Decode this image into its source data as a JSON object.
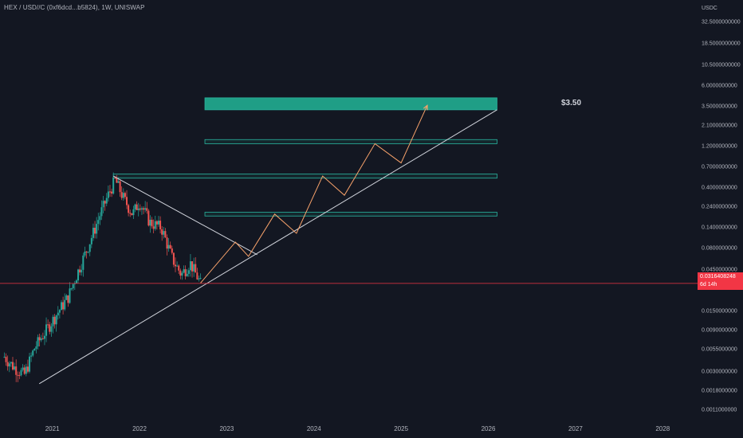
{
  "header": {
    "symbol_line": "HEX / USD//C (0xf6dcd...b5824), 1W, UNISWAP"
  },
  "price_axis": {
    "currency": "USDC",
    "scale": "log",
    "ticks": [
      "32.5000000000",
      "18.5000000000",
      "10.5000000000",
      "6.0000000000",
      "3.5000000000",
      "2.1000000000",
      "1.2000000000",
      "0.7000000000",
      "0.4000000000",
      "0.2400000000",
      "0.1400000000",
      "0.0800000000",
      "0.0450000000",
      "0.0150000000",
      "0.0090000000",
      "0.0055000000",
      "0.0030000000",
      "0.0018000000",
      "0.0011000000"
    ]
  },
  "time_axis": {
    "ticks": [
      "2021",
      "2022",
      "2023",
      "2024",
      "2025",
      "2026",
      "2027",
      "2028"
    ]
  },
  "current_price": {
    "value": "0.0316408248",
    "countdown": "6d 14h",
    "numeric": 0.0316408248
  },
  "annotations": {
    "target_label": "$3.50"
  },
  "colors": {
    "background": "#131722",
    "up_candle": "#26a69a",
    "down_candle": "#ef5350",
    "trendline": "#d1d4dc",
    "projection": "#f7a26b",
    "zone_fill": "#1f9e86",
    "zone_border": "#2ab5a0",
    "price_line": "#f23645"
  },
  "chart_data": {
    "type": "candlestick",
    "symbol": "HEX / USD//C",
    "interval": "1W",
    "exchange": "UNISWAP",
    "y_scale": "log",
    "x_range": [
      2020.4,
      2028.4
    ],
    "y_range": [
      0.00098,
      48
    ],
    "price_points": [
      {
        "x": 2020.45,
        "y": 0.0045
      },
      {
        "x": 2020.55,
        "y": 0.0035
      },
      {
        "x": 2020.68,
        "y": 0.0028
      },
      {
        "x": 2020.8,
        "y": 0.0058
      },
      {
        "x": 2020.92,
        "y": 0.0088
      },
      {
        "x": 2021.05,
        "y": 0.014
      },
      {
        "x": 2021.18,
        "y": 0.022
      },
      {
        "x": 2021.28,
        "y": 0.04
      },
      {
        "x": 2021.42,
        "y": 0.09
      },
      {
        "x": 2021.55,
        "y": 0.2
      },
      {
        "x": 2021.65,
        "y": 0.35
      },
      {
        "x": 2021.72,
        "y": 0.5
      },
      {
        "x": 2021.82,
        "y": 0.3
      },
      {
        "x": 2021.92,
        "y": 0.2
      },
      {
        "x": 2022.0,
        "y": 0.28
      },
      {
        "x": 2022.12,
        "y": 0.16
      },
      {
        "x": 2022.25,
        "y": 0.14
      },
      {
        "x": 2022.38,
        "y": 0.06
      },
      {
        "x": 2022.48,
        "y": 0.04
      },
      {
        "x": 2022.58,
        "y": 0.055
      },
      {
        "x": 2022.7,
        "y": 0.0316
      }
    ],
    "trendlines": [
      {
        "name": "rising support",
        "from": {
          "x": 2020.85,
          "y": 0.0022
        },
        "to": {
          "x": 2026.1,
          "y": 3.2
        }
      },
      {
        "name": "falling resistance",
        "from": {
          "x": 2021.7,
          "y": 0.55
        },
        "to": {
          "x": 2023.35,
          "y": 0.068
        }
      }
    ],
    "zones": [
      {
        "name": "target zone",
        "from_x": 2022.75,
        "to_x": 2026.1,
        "low": 3.2,
        "high": 4.4,
        "filled": true
      },
      {
        "name": "zone 2",
        "from_x": 2022.75,
        "to_x": 2026.1,
        "low": 1.3,
        "high": 1.45,
        "filled": false
      },
      {
        "name": "zone 3",
        "from_x": 2021.7,
        "to_x": 2026.1,
        "low": 0.52,
        "high": 0.58,
        "filled": false
      },
      {
        "name": "zone 4",
        "from_x": 2022.75,
        "to_x": 2026.1,
        "low": 0.19,
        "high": 0.21,
        "filled": false
      }
    ],
    "projection_path": [
      {
        "x": 2022.7,
        "y": 0.032
      },
      {
        "x": 2023.1,
        "y": 0.095
      },
      {
        "x": 2023.25,
        "y": 0.065
      },
      {
        "x": 2023.55,
        "y": 0.2
      },
      {
        "x": 2023.8,
        "y": 0.12
      },
      {
        "x": 2024.1,
        "y": 0.55
      },
      {
        "x": 2024.35,
        "y": 0.33
      },
      {
        "x": 2024.7,
        "y": 1.3
      },
      {
        "x": 2025.0,
        "y": 0.78
      },
      {
        "x": 2025.3,
        "y": 3.6
      }
    ],
    "target_price": 3.5
  }
}
